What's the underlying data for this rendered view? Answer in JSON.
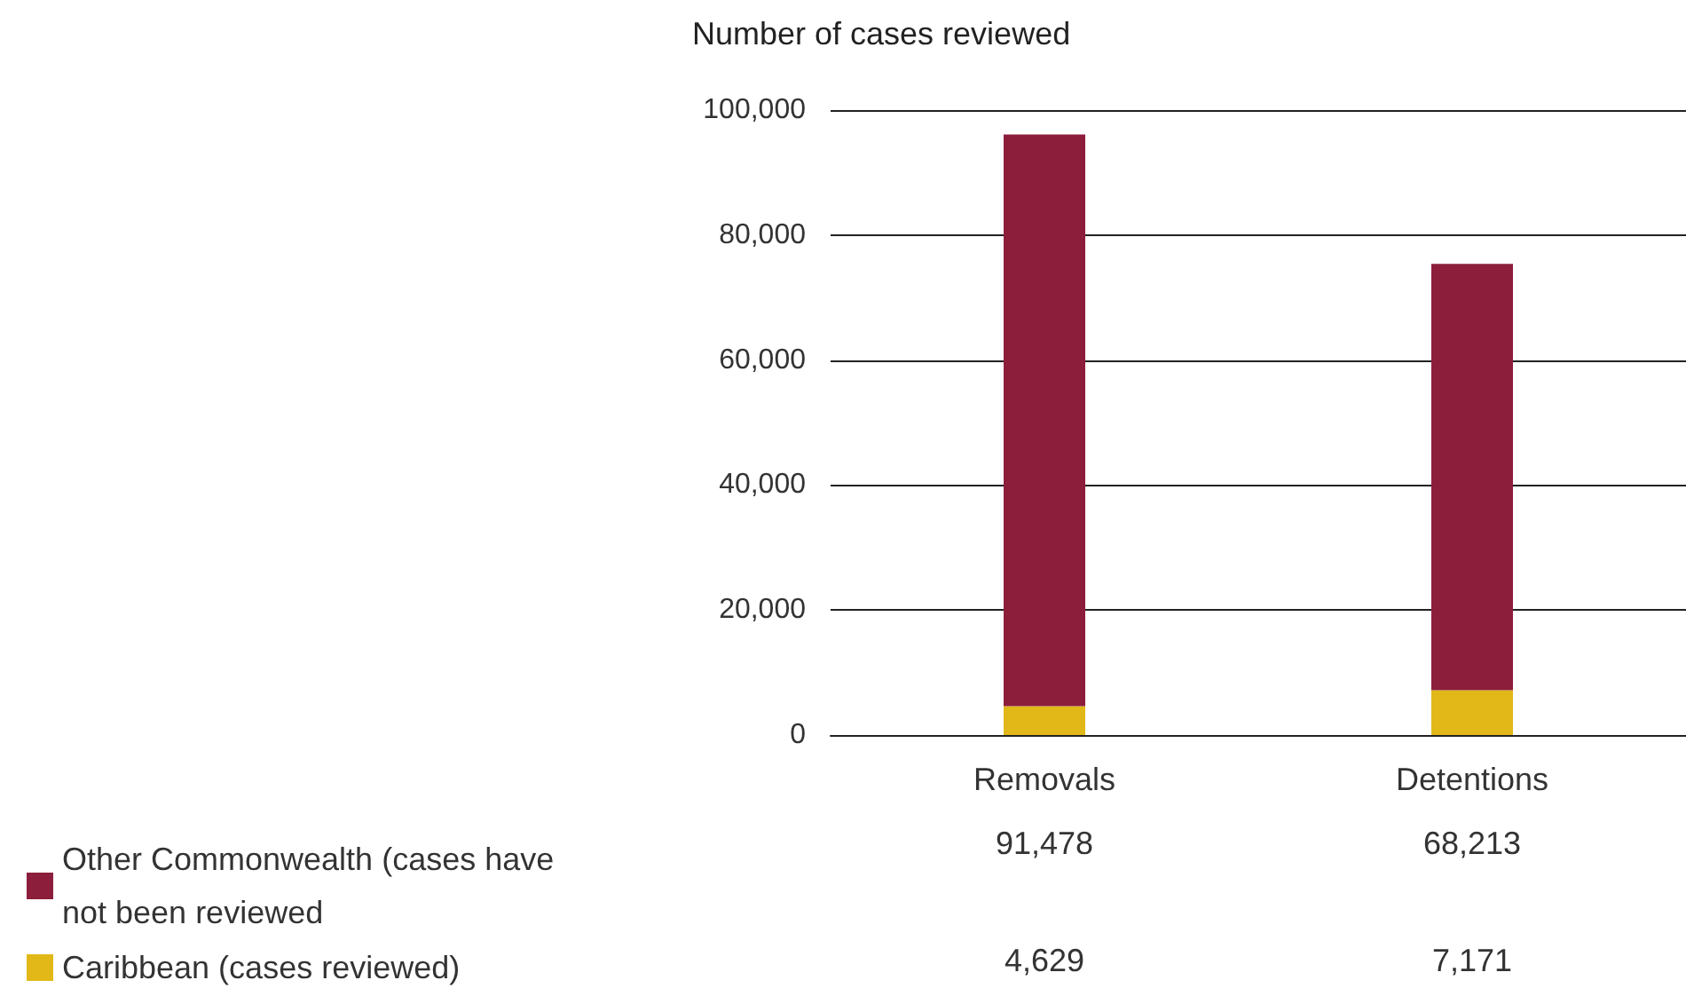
{
  "chart_data": {
    "type": "bar",
    "stacked": true,
    "ylabel": "Number of cases reviewed",
    "categories": [
      "Removals",
      "Detentions"
    ],
    "series": [
      {
        "name": "Caribbean (cases reviewed)",
        "color": "#e1b818",
        "values": [
          4629,
          7171
        ],
        "value_labels": [
          "4,629",
          "7,171"
        ]
      },
      {
        "name": "Other Commonwealth (cases have not been reviewed",
        "color": "#8c1e3c",
        "values": [
          91478,
          68213
        ],
        "value_labels": [
          "91,478",
          "68,213"
        ]
      }
    ],
    "ylim": [
      0,
      100000
    ],
    "yticks": [
      0,
      {
        "value": 20000,
        "label": "20,000"
      },
      {
        "value": 40000,
        "label": "40,000"
      },
      {
        "value": 60000,
        "label": "60,000"
      },
      {
        "value": 80000,
        "label": "80,000"
      },
      {
        "value": 100000,
        "label": "100,000"
      }
    ],
    "grid": "y",
    "legend": "bottom left"
  }
}
